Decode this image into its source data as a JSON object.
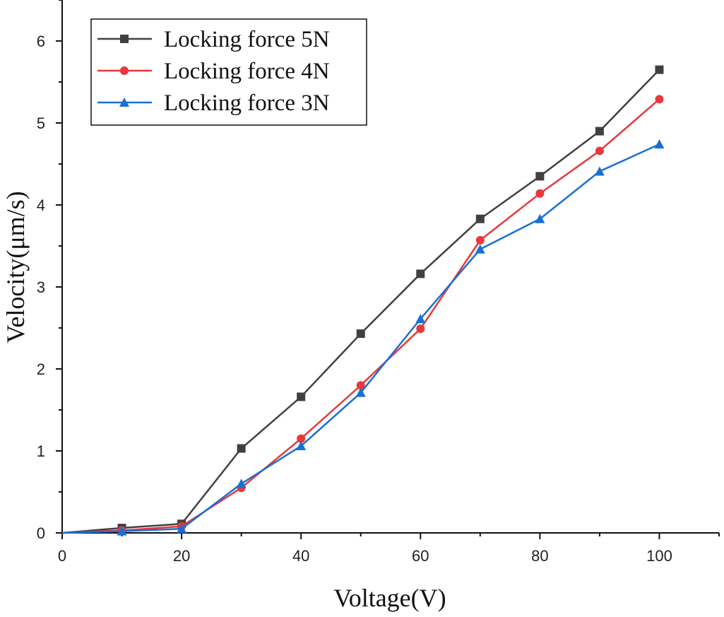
{
  "chart_data": {
    "type": "line",
    "title": "",
    "xlabel": "Voltage(V)",
    "ylabel": "Velocity(μm/s)",
    "xlim": [
      0,
      110
    ],
    "ylim": [
      0,
      6.5
    ],
    "xticks": [
      0,
      20,
      40,
      60,
      80,
      100
    ],
    "yticks": [
      0,
      1,
      2,
      3,
      4,
      5,
      6
    ],
    "grid": false,
    "legend_position": "top-left",
    "series": [
      {
        "name": "Locking force 5N",
        "color": "#404040",
        "marker": "square",
        "x": [
          0,
          10,
          20,
          30,
          40,
          50,
          60,
          70,
          80,
          90,
          100
        ],
        "y": [
          0,
          0.06,
          0.11,
          1.03,
          1.66,
          2.43,
          3.16,
          3.83,
          4.35,
          4.9,
          5.65
        ]
      },
      {
        "name": "Locking force 4N",
        "color": "#e8383b",
        "marker": "circle",
        "x": [
          0,
          10,
          20,
          30,
          40,
          50,
          60,
          70,
          80,
          90,
          100
        ],
        "y": [
          0,
          0.03,
          0.08,
          0.55,
          1.15,
          1.8,
          2.49,
          3.57,
          4.14,
          4.66,
          5.29
        ]
      },
      {
        "name": "Locking force 3N",
        "color": "#1a6fd4",
        "marker": "triangle",
        "x": [
          0,
          10,
          20,
          30,
          40,
          50,
          60,
          70,
          80,
          90,
          100
        ],
        "y": [
          0,
          0.02,
          0.05,
          0.6,
          1.06,
          1.71,
          2.61,
          3.46,
          3.83,
          4.41,
          4.74
        ]
      }
    ]
  }
}
